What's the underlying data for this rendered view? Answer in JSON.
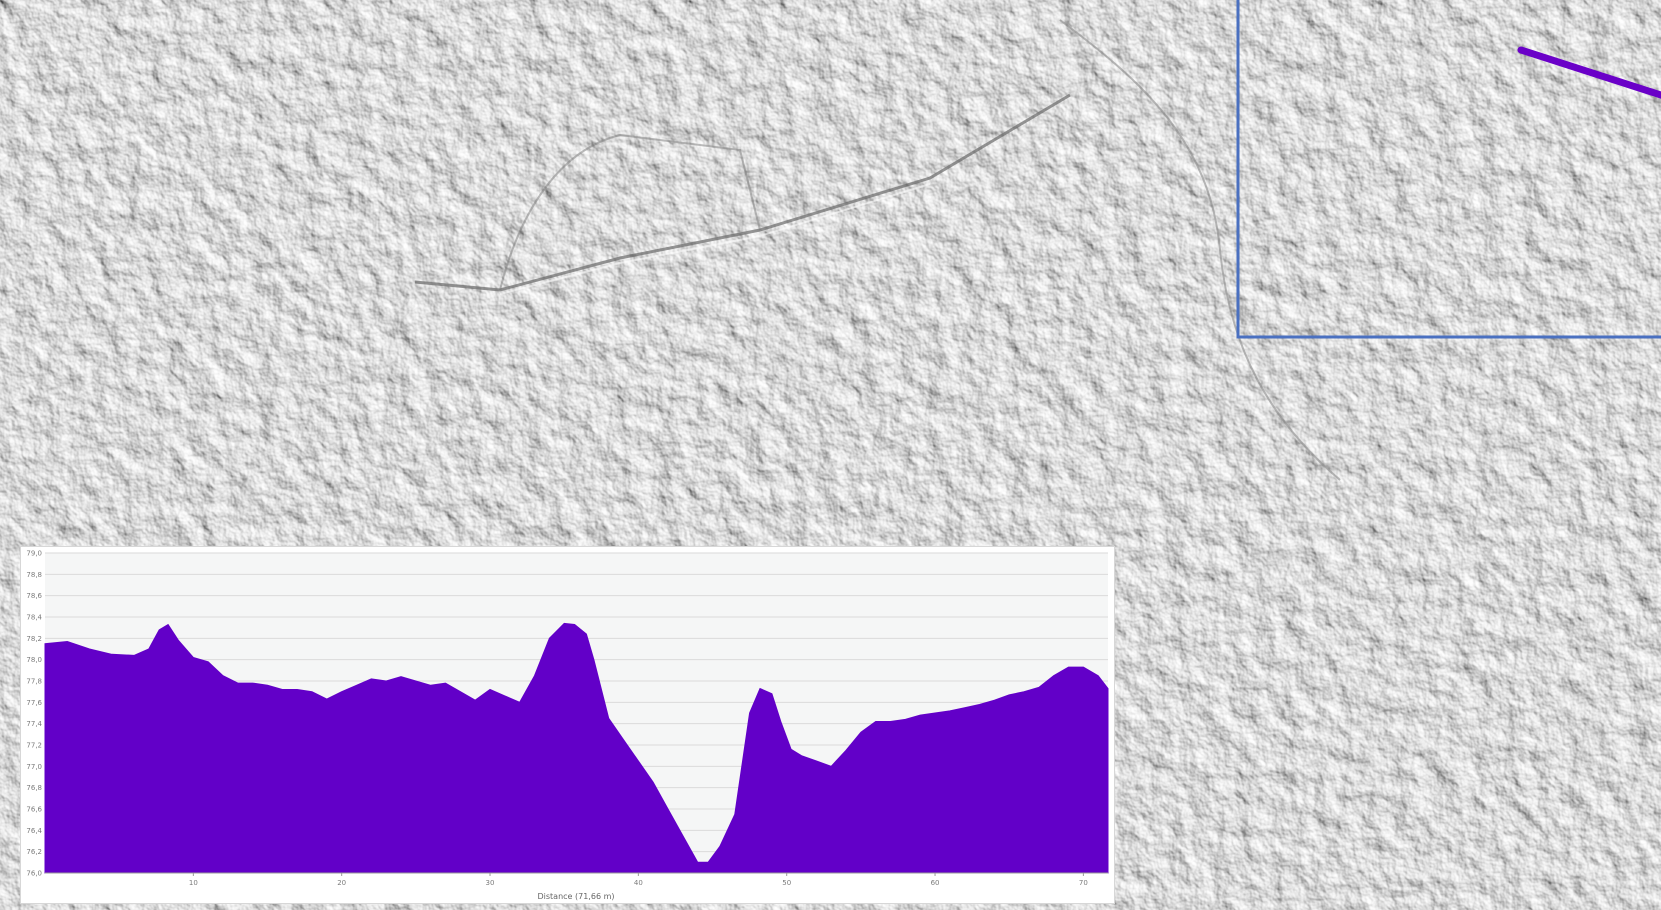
{
  "chart_data": {
    "type": "area",
    "title": "",
    "xlabel": "Distance (71,66 m)",
    "ylabel": "",
    "xlim": [
      0,
      71.66
    ],
    "ylim": [
      76.0,
      79.0
    ],
    "grid": true,
    "legend": "none",
    "fill_color": "#6200c8",
    "x_ticks": [
      10,
      20,
      30,
      40,
      50,
      60,
      70
    ],
    "x_tick_labels": [
      "10",
      "20",
      "30",
      "40",
      "50",
      "60",
      "70"
    ],
    "y_ticks": [
      76.0,
      76.2,
      76.4,
      76.6,
      76.8,
      77.0,
      77.2,
      77.4,
      77.6,
      77.8,
      78.0,
      78.2,
      78.4,
      78.6,
      78.8,
      79.0
    ],
    "y_tick_labels": [
      "76,0",
      "76,2",
      "76,4",
      "76,6",
      "76,8",
      "77,0",
      "77,2",
      "77,4",
      "77,6",
      "77,8",
      "78,0",
      "78,2",
      "78,4",
      "78,6",
      "78,8",
      "79,0"
    ],
    "series": [
      {
        "x": [
          0,
          1.5,
          3,
          4.5,
          6,
          7,
          7.7,
          8.3,
          9,
          10,
          11,
          12,
          13,
          14,
          15,
          16,
          17,
          18,
          19,
          20,
          21,
          22,
          23,
          24,
          25,
          26,
          27,
          28,
          29,
          30,
          31,
          32,
          33,
          34,
          35,
          35.7,
          36.5,
          37,
          38,
          39,
          40,
          41,
          42,
          43,
          44,
          44.7,
          45.5,
          46.5,
          47.5,
          48.2,
          49,
          49.6,
          50.3,
          51,
          52,
          53,
          54,
          55,
          56,
          57,
          58,
          59,
          60,
          61,
          62,
          63,
          64,
          65,
          66,
          67,
          68,
          69,
          70,
          71,
          71.66
        ],
        "y": [
          78.15,
          78.17,
          78.1,
          78.05,
          78.04,
          78.1,
          78.28,
          78.33,
          78.18,
          78.02,
          77.98,
          77.85,
          77.78,
          77.78,
          77.76,
          77.72,
          77.72,
          77.7,
          77.63,
          77.7,
          77.76,
          77.82,
          77.8,
          77.84,
          77.8,
          77.76,
          77.78,
          77.7,
          77.62,
          77.72,
          77.66,
          77.6,
          77.85,
          78.2,
          78.34,
          78.33,
          78.24,
          78.0,
          77.45,
          77.25,
          77.05,
          76.85,
          76.6,
          76.35,
          76.1,
          76.1,
          76.25,
          76.55,
          77.5,
          77.73,
          77.68,
          77.42,
          77.16,
          77.1,
          77.05,
          77.0,
          77.15,
          77.32,
          77.42,
          77.42,
          77.44,
          77.48,
          77.5,
          77.52,
          77.55,
          77.58,
          77.62,
          77.67,
          77.7,
          77.74,
          77.85,
          77.93,
          77.93,
          77.85,
          77.73
        ]
      }
    ]
  }
}
